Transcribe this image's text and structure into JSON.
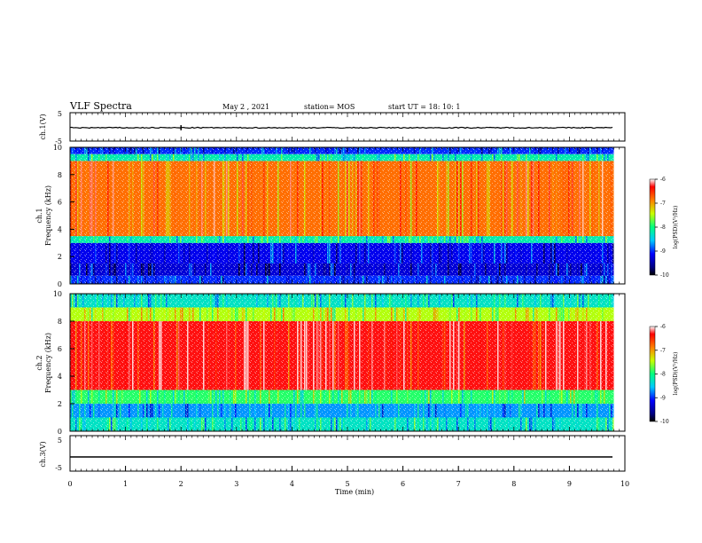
{
  "header": {
    "title": "VLF Spectra",
    "date": "May 2 , 2021",
    "station": "station= MOS",
    "start": "start UT =  18: 10: 1"
  },
  "chart_data": [
    {
      "type": "line",
      "ylabel": "ch.1(V)",
      "ylim": [
        -5,
        5
      ],
      "yticks": [
        "5",
        "-5"
      ],
      "x": [
        0,
        9.8
      ],
      "values": [
        -0.3,
        -0.3
      ],
      "note_spikes": [
        2.0
      ]
    },
    {
      "type": "heatmap",
      "ylabel_top": "ch.1",
      "ylabel": "Frequency (kHz)",
      "ylim": [
        0,
        10
      ],
      "yticks": [
        "0",
        "2",
        "4",
        "6",
        "8",
        "10"
      ],
      "xlim": [
        0,
        10
      ],
      "colorbar": {
        "label": "log(PSD)(V²/Hz)",
        "range": [
          -10,
          -6
        ],
        "ticks": [
          "-6",
          "-7",
          "-8",
          "-9",
          "-10"
        ]
      },
      "bands": [
        {
          "from": 0.0,
          "to": 0.6,
          "level": -9.0
        },
        {
          "from": 0.6,
          "to": 1.5,
          "level": -9.3
        },
        {
          "from": 1.5,
          "to": 3.0,
          "level": -9.2
        },
        {
          "from": 3.0,
          "to": 3.5,
          "level": -8.2
        },
        {
          "from": 3.5,
          "to": 9.0,
          "level": -6.8
        },
        {
          "from": 9.0,
          "to": 9.5,
          "level": -8.2
        },
        {
          "from": 9.5,
          "to": 10.0,
          "level": -9.0
        }
      ]
    },
    {
      "type": "heatmap",
      "ylabel_top": "ch.2",
      "ylabel": "Frequency (kHz)",
      "ylim": [
        0,
        10
      ],
      "yticks": [
        "0",
        "2",
        "4",
        "6",
        "8",
        "10"
      ],
      "xlim": [
        0,
        10
      ],
      "colorbar": {
        "label": "log(PSD)(V²/Hz)",
        "range": [
          -10,
          -6
        ],
        "ticks": [
          "-6",
          "-7",
          "-8",
          "-9",
          "-10"
        ]
      },
      "bands": [
        {
          "from": 0.0,
          "to": 1.0,
          "level": -8.3
        },
        {
          "from": 1.0,
          "to": 2.0,
          "level": -8.7
        },
        {
          "from": 2.0,
          "to": 3.0,
          "level": -7.9
        },
        {
          "from": 3.0,
          "to": 8.0,
          "level": -6.3
        },
        {
          "from": 8.0,
          "to": 9.0,
          "level": -7.5
        },
        {
          "from": 9.0,
          "to": 10.0,
          "level": -8.3
        }
      ]
    },
    {
      "type": "line",
      "ylabel": "ch.3(V)",
      "ylim": [
        -5,
        5
      ],
      "yticks": [
        "5",
        "-5"
      ],
      "x": [
        0,
        9.8
      ],
      "values": [
        -1.0,
        -1.0
      ],
      "xlabel": "Time (min)",
      "xlim": [
        0,
        10
      ],
      "xticks": [
        "0",
        "1",
        "2",
        "3",
        "4",
        "5",
        "6",
        "7",
        "8",
        "9",
        "10"
      ]
    }
  ]
}
